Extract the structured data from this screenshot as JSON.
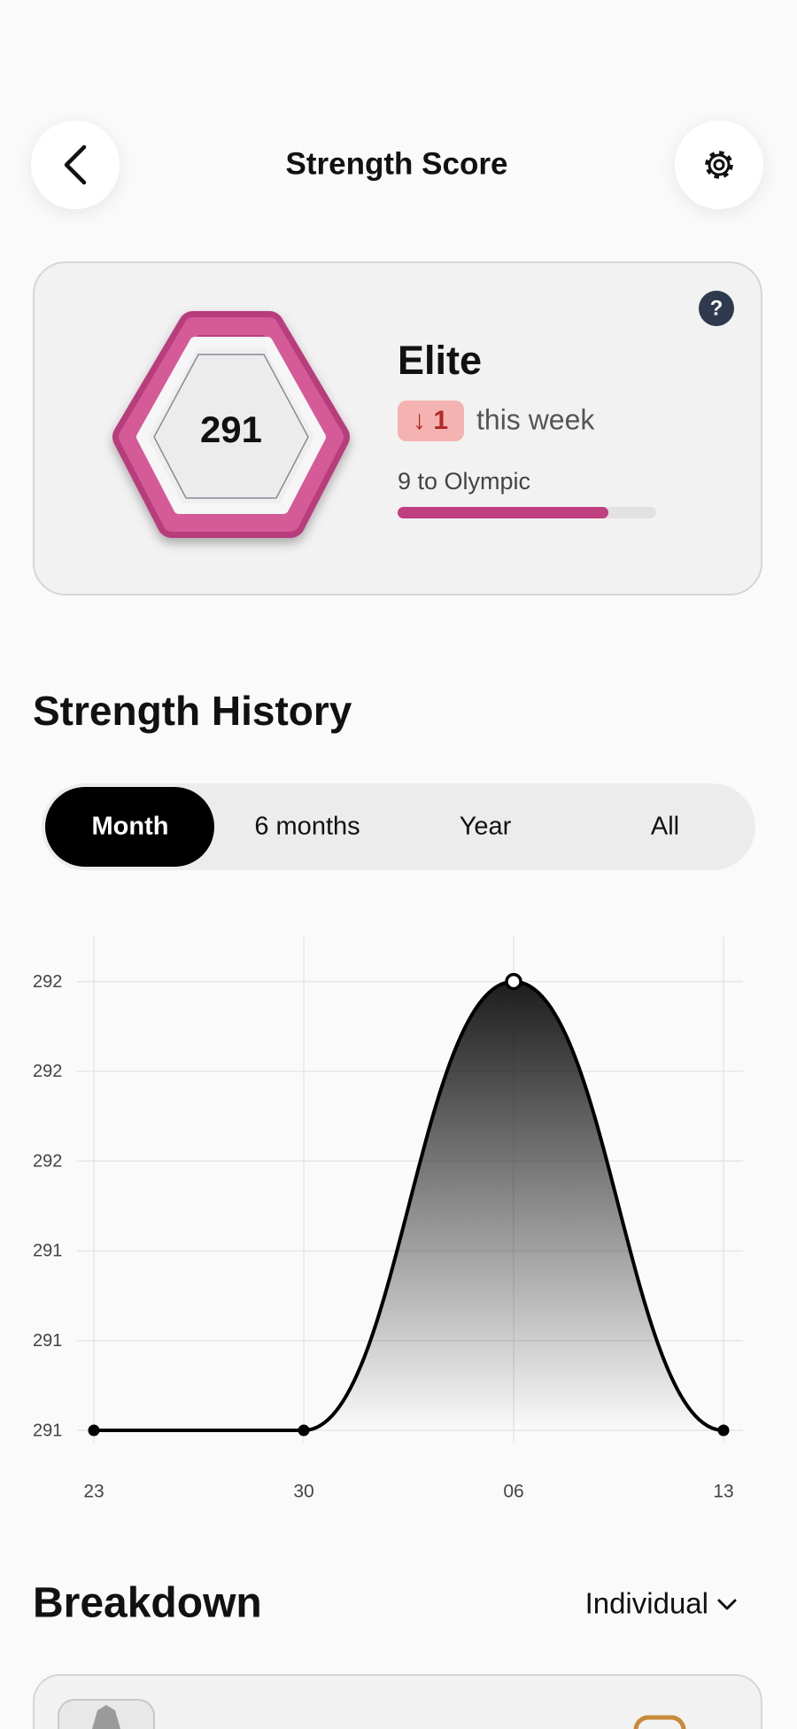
{
  "header": {
    "title": "Strength Score"
  },
  "score_card": {
    "score": "291",
    "help": "?",
    "level": "Elite",
    "change": "↓ 1",
    "change_period": "this week",
    "next_level": "9 to Olympic"
  },
  "history": {
    "title": "Strength History",
    "ranges": [
      "Month",
      "6 months",
      "Year",
      "All"
    ]
  },
  "chart_data": {
    "type": "line",
    "categories": [
      "23",
      "30",
      "06",
      "13"
    ],
    "values": [
      291,
      291,
      292,
      291
    ],
    "color": "#000000",
    "ylim": [
      291,
      292.1
    ],
    "yticks": [
      291,
      {
        "value": 291.2,
        "label": "291"
      },
      {
        "value": 291.4,
        "label": "291"
      },
      {
        "value": 291.6,
        "label": "292"
      },
      {
        "value": 291.8,
        "label": "292"
      },
      292
    ],
    "grid": true
  },
  "breakdown": {
    "title": "Breakdown",
    "filter": "Individual"
  }
}
